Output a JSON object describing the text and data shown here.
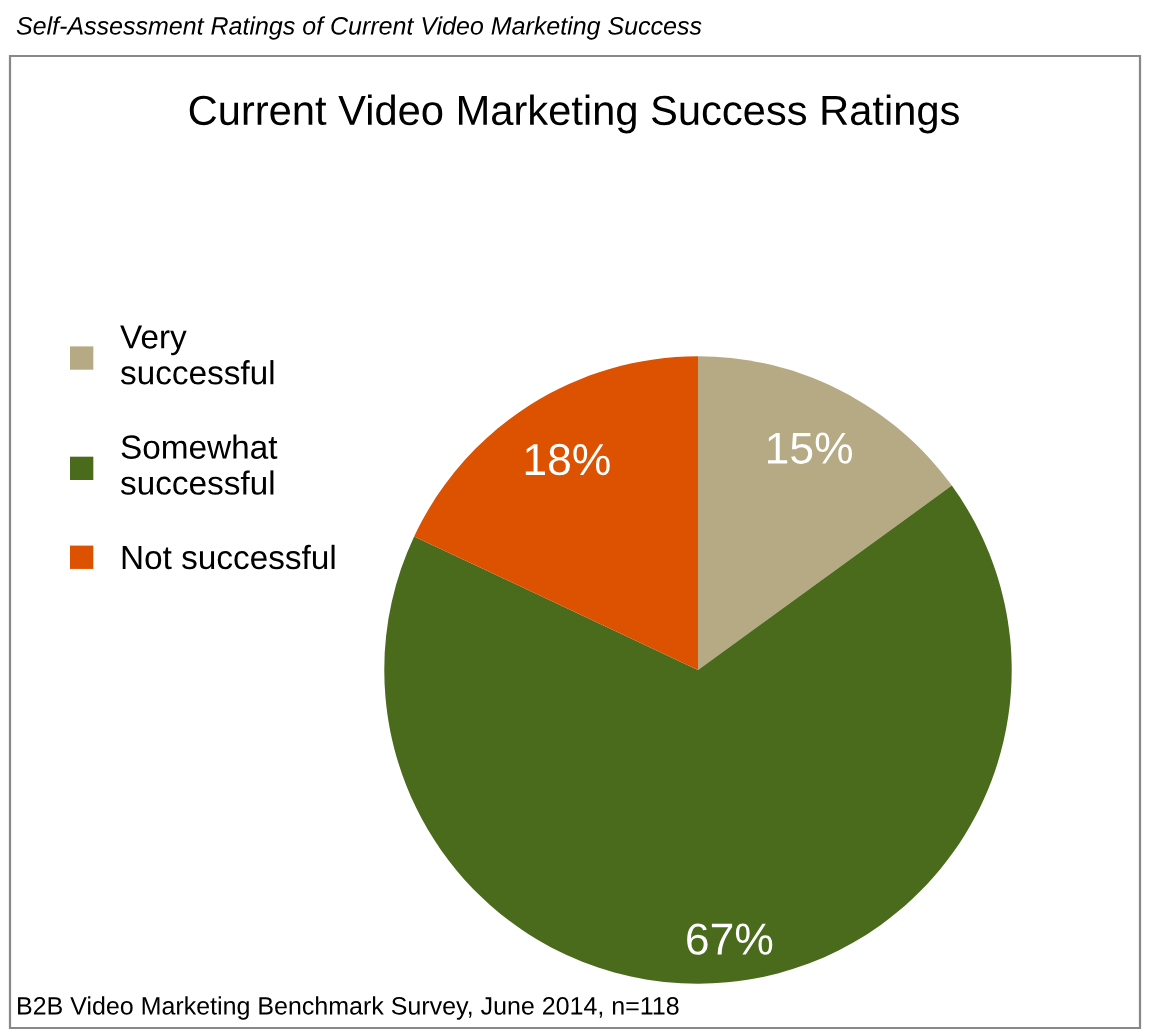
{
  "chart_data": {
    "type": "pie",
    "subtitle": "Self-Assessment Ratings of Current Video Marketing Success",
    "title": "Current Video Marketing Success Ratings",
    "categories": [
      "Very\nsuccessful",
      "Somewhat\nsuccessful",
      "Not successful"
    ],
    "values": [
      15,
      67,
      18
    ],
    "colors": [
      "#b5aa84",
      "#4a6b1c",
      "#dc5200"
    ],
    "value_labels": [
      "15%",
      "67%",
      "18%"
    ],
    "legend": "left",
    "annotations": [
      "B2B Video Marketing Benchmark Survey, June 2014, n=118"
    ]
  }
}
